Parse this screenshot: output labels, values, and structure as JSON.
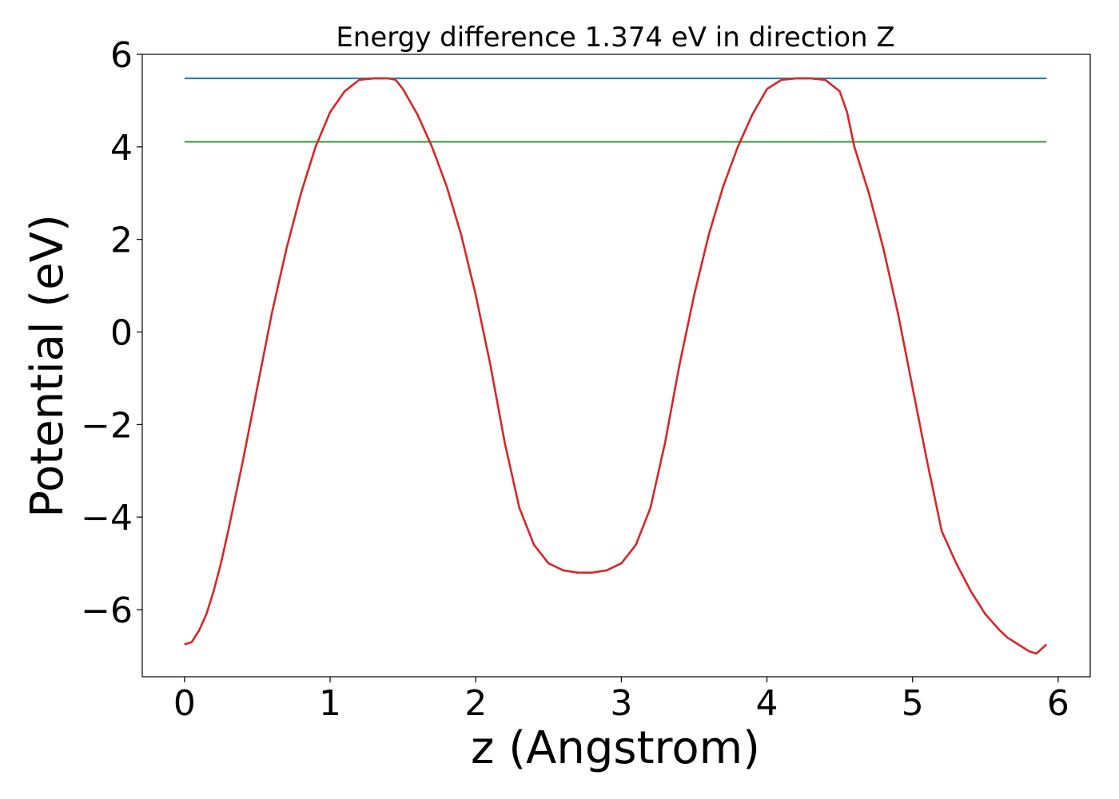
{
  "chart_data": {
    "type": "line",
    "title": "Energy difference 1.374 eV in direction Z",
    "xlabel": "z (Angstrom)",
    "ylabel": "Potential (eV)",
    "xlim": [
      -0.29,
      6.22
    ],
    "ylim": [
      -7.45,
      6.0
    ],
    "xticks": [
      0,
      1,
      2,
      3,
      4,
      5,
      6
    ],
    "xtick_labels": [
      "0",
      "1",
      "2",
      "3",
      "4",
      "5",
      "6"
    ],
    "yticks": [
      -6,
      -4,
      -2,
      0,
      2,
      4,
      6
    ],
    "ytick_labels": [
      "−6",
      "−4",
      "−2",
      "0",
      "2",
      "4",
      "6"
    ],
    "grid": false,
    "series": [
      {
        "color": "#1f77b4",
        "x": [
          0,
          5.92
        ],
        "y": [
          5.48,
          5.48
        ]
      },
      {
        "color": "#2ca02c",
        "x": [
          0,
          5.92
        ],
        "y": [
          4.11,
          4.11
        ]
      },
      {
        "color": "#d62728",
        "x": [
          0.0,
          0.05,
          0.1,
          0.15,
          0.2,
          0.25,
          0.3,
          0.35,
          0.4,
          0.5,
          0.6,
          0.7,
          0.8,
          0.9,
          1.0,
          1.1,
          1.2,
          1.3,
          1.4,
          1.45,
          1.5,
          1.6,
          1.7,
          1.8,
          1.9,
          2.0,
          2.1,
          2.2,
          2.3,
          2.4,
          2.5,
          2.6,
          2.7,
          2.8,
          2.9,
          3.0,
          3.1,
          3.2,
          3.3,
          3.4,
          3.5,
          3.6,
          3.7,
          3.8,
          3.9,
          4.0,
          4.1,
          4.2,
          4.3,
          4.4,
          4.5,
          4.55,
          4.6,
          4.7,
          4.8,
          4.9,
          5.0,
          5.1,
          5.2,
          5.3,
          5.4,
          5.5,
          5.6,
          5.65,
          5.7,
          5.75,
          5.8,
          5.85,
          5.92
        ],
        "y": [
          -6.75,
          -6.7,
          -6.45,
          -6.1,
          -5.6,
          -5.0,
          -4.3,
          -3.55,
          -2.8,
          -1.2,
          0.4,
          1.8,
          3.0,
          4.0,
          4.75,
          5.2,
          5.45,
          5.48,
          5.48,
          5.45,
          5.25,
          4.7,
          4.0,
          3.15,
          2.1,
          0.8,
          -0.7,
          -2.4,
          -3.8,
          -4.6,
          -5.0,
          -5.15,
          -5.2,
          -5.2,
          -5.15,
          -5.0,
          -4.6,
          -3.8,
          -2.4,
          -0.7,
          0.8,
          2.1,
          3.15,
          4.0,
          4.7,
          5.25,
          5.45,
          5.48,
          5.48,
          5.45,
          5.2,
          4.75,
          4.0,
          3.0,
          1.8,
          0.4,
          -1.2,
          -2.8,
          -4.3,
          -5.0,
          -5.6,
          -6.1,
          -6.45,
          -6.6,
          -6.7,
          -6.8,
          -6.9,
          -6.95,
          -6.75
        ]
      }
    ]
  }
}
